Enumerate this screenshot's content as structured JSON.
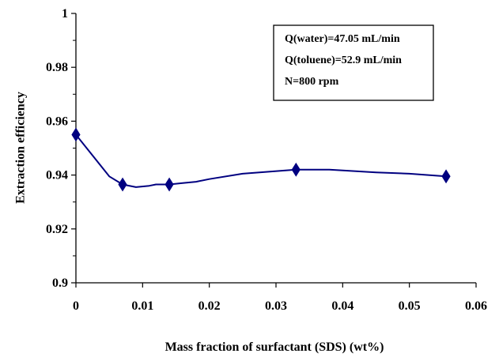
{
  "chart_data": {
    "type": "line",
    "xlabel": "Mass fraction of surfactant (SDS) (wt%)",
    "ylabel": "Extraction  efficiency",
    "xlim": [
      0,
      0.06
    ],
    "ylim": [
      0.9,
      1.0
    ],
    "x_ticks": [
      "0",
      "0.01",
      "0.02",
      "0.03",
      "0.04",
      "0.05",
      "0.06"
    ],
    "y_ticks": [
      "0.9",
      "0.92",
      "0.94",
      "0.96",
      "0.98",
      "1"
    ],
    "grid": false,
    "line_color": "#000080",
    "series": [
      {
        "x": [
          0,
          0.005,
          0.007,
          0.009,
          0.011,
          0.012,
          0.014,
          0.016,
          0.018,
          0.02,
          0.025,
          0.033,
          0.038,
          0.045,
          0.05,
          0.0555
        ],
        "y": [
          0.955,
          0.9395,
          0.9365,
          0.9355,
          0.936,
          0.9365,
          0.9365,
          0.937,
          0.9375,
          0.9385,
          0.9405,
          0.942,
          0.942,
          0.941,
          0.9405,
          0.9395
        ],
        "markers": {
          "x": [
            0,
            0.007,
            0.014,
            0.033,
            0.0555
          ],
          "y": [
            0.955,
            0.9365,
            0.9365,
            0.942,
            0.9395
          ]
        }
      }
    ],
    "annotation": {
      "lines": [
        "Q(water)=47.05 mL/min",
        "Q(toluene)=52.9 mL/min",
        "N=800 rpm"
      ],
      "placement": "top-right"
    }
  }
}
